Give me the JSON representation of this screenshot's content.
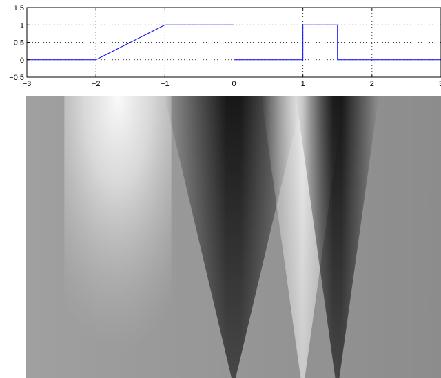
{
  "chart_data": [
    {
      "type": "line",
      "title": "",
      "xlabel": "",
      "ylabel": "",
      "xlim": [
        -3,
        3
      ],
      "ylim": [
        -0.5,
        1.5
      ],
      "grid": true,
      "grid_style": "dotted",
      "x_ticks": [
        -3,
        -2,
        -1,
        0,
        1,
        2,
        3
      ],
      "x_tick_labels": [
        "−3",
        "−2",
        "−1",
        "0",
        "1",
        "2",
        "3"
      ],
      "y_ticks": [
        -0.5,
        0,
        0.5,
        1,
        1.5
      ],
      "y_tick_labels": [
        "−0.5",
        "0",
        "0.5",
        "1",
        "1.5"
      ],
      "series": [
        {
          "color": "#0000ff",
          "x": [
            -3,
            -2,
            -1,
            0,
            0,
            1,
            1,
            1.5,
            1.5,
            3
          ],
          "y": [
            0,
            0,
            1,
            1,
            0,
            0,
            1,
            1,
            0,
            0
          ]
        }
      ]
    },
    {
      "type": "heatmap",
      "title": "",
      "xlabel": "",
      "ylabel": "",
      "colormap": "gray",
      "axes_visible": false,
      "background_gray": "#8a8a8a",
      "features": [
        {
          "kind": "bright-plateau",
          "x_start": -2,
          "x_end": -1
        },
        {
          "kind": "dark-cone",
          "x_apex": 0
        },
        {
          "kind": "bright-cone",
          "x_apex": 1
        },
        {
          "kind": "dark-cone",
          "x_apex": 1.5
        }
      ]
    }
  ]
}
